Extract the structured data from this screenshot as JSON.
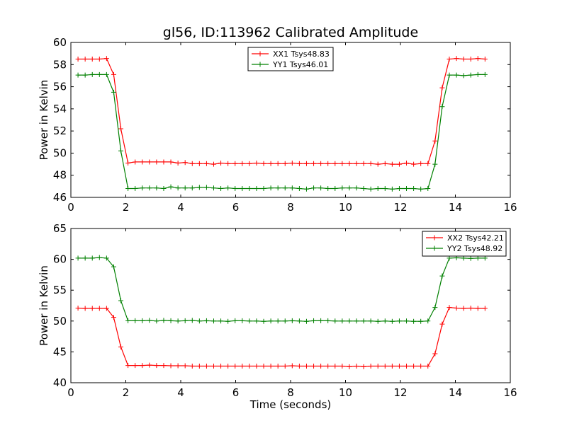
{
  "chart_data": [
    {
      "type": "line",
      "title": "gl56, ID:113962 Calibrated Amplitude",
      "xlabel": "",
      "ylabel": "Power in Kelvin",
      "xlim": [
        0,
        16
      ],
      "ylim": [
        46,
        60
      ],
      "xticks": [
        0,
        2,
        4,
        6,
        8,
        10,
        12,
        14,
        16
      ],
      "yticks": [
        46,
        48,
        50,
        52,
        54,
        56,
        58,
        60
      ],
      "legend": "top-center",
      "x": [
        0.26,
        0.52,
        0.78,
        1.04,
        1.3,
        1.56,
        1.82,
        2.08,
        2.34,
        2.6,
        2.86,
        3.12,
        3.38,
        3.64,
        3.9,
        4.16,
        4.42,
        4.68,
        4.94,
        5.2,
        5.46,
        5.72,
        5.98,
        6.24,
        6.5,
        6.76,
        7.02,
        7.28,
        7.54,
        7.8,
        8.06,
        8.32,
        8.58,
        8.84,
        9.1,
        9.36,
        9.62,
        9.88,
        10.14,
        10.4,
        10.66,
        10.92,
        11.18,
        11.44,
        11.7,
        11.96,
        12.22,
        12.48,
        12.74,
        13.0,
        13.26,
        13.52,
        13.78,
        14.04,
        14.3,
        14.56,
        14.82,
        15.08
      ],
      "series": [
        {
          "name": "XX1 Tsys48.83",
          "color": "#ff0000",
          "values": [
            58.5,
            58.5,
            58.5,
            58.5,
            58.55,
            57.1,
            52.2,
            49.1,
            49.2,
            49.2,
            49.2,
            49.2,
            49.2,
            49.2,
            49.1,
            49.15,
            49.05,
            49.05,
            49.05,
            49.0,
            49.1,
            49.05,
            49.05,
            49.05,
            49.05,
            49.1,
            49.05,
            49.05,
            49.05,
            49.05,
            49.1,
            49.05,
            49.05,
            49.05,
            49.05,
            49.05,
            49.05,
            49.05,
            49.05,
            49.05,
            49.05,
            49.05,
            49.0,
            49.05,
            49.0,
            49.0,
            49.1,
            49.0,
            49.05,
            49.05,
            51.1,
            55.9,
            58.5,
            58.55,
            58.5,
            58.5,
            58.55,
            58.5
          ]
        },
        {
          "name": "YY1 Tsys46.01",
          "color": "#008000",
          "values": [
            57.05,
            57.05,
            57.1,
            57.1,
            57.1,
            55.5,
            50.2,
            46.8,
            46.8,
            46.85,
            46.85,
            46.85,
            46.8,
            46.95,
            46.85,
            46.85,
            46.85,
            46.9,
            46.9,
            46.85,
            46.8,
            46.85,
            46.8,
            46.8,
            46.8,
            46.8,
            46.8,
            46.85,
            46.85,
            46.85,
            46.85,
            46.8,
            46.75,
            46.85,
            46.85,
            46.8,
            46.8,
            46.85,
            46.85,
            46.85,
            46.8,
            46.75,
            46.8,
            46.8,
            46.75,
            46.8,
            46.8,
            46.8,
            46.75,
            46.8,
            49.0,
            54.2,
            57.05,
            57.05,
            57.0,
            57.05,
            57.1,
            57.1
          ]
        }
      ]
    },
    {
      "type": "line",
      "title": "",
      "xlabel": "Time (seconds)",
      "ylabel": "Power in Kelvin",
      "xlim": [
        0,
        16
      ],
      "ylim": [
        40,
        65
      ],
      "xticks": [
        0,
        2,
        4,
        6,
        8,
        10,
        12,
        14,
        16
      ],
      "yticks": [
        40,
        45,
        50,
        55,
        60,
        65
      ],
      "legend": "top-right",
      "x": [
        0.26,
        0.52,
        0.78,
        1.04,
        1.3,
        1.56,
        1.82,
        2.08,
        2.34,
        2.6,
        2.86,
        3.12,
        3.38,
        3.64,
        3.9,
        4.16,
        4.42,
        4.68,
        4.94,
        5.2,
        5.46,
        5.72,
        5.98,
        6.24,
        6.5,
        6.76,
        7.02,
        7.28,
        7.54,
        7.8,
        8.06,
        8.32,
        8.58,
        8.84,
        9.1,
        9.36,
        9.62,
        9.88,
        10.14,
        10.4,
        10.66,
        10.92,
        11.18,
        11.44,
        11.7,
        11.96,
        12.22,
        12.48,
        12.74,
        13.0,
        13.26,
        13.52,
        13.78,
        14.04,
        14.3,
        14.56,
        14.82,
        15.08
      ],
      "series": [
        {
          "name": "XX2 Tsys42.21",
          "color": "#ff0000",
          "values": [
            52.1,
            52.05,
            52.05,
            52.05,
            52.05,
            50.6,
            45.8,
            42.8,
            42.8,
            42.8,
            42.85,
            42.8,
            42.8,
            42.75,
            42.75,
            42.75,
            42.7,
            42.7,
            42.7,
            42.7,
            42.7,
            42.7,
            42.7,
            42.7,
            42.7,
            42.7,
            42.7,
            42.7,
            42.7,
            42.7,
            42.75,
            42.7,
            42.7,
            42.7,
            42.7,
            42.7,
            42.7,
            42.7,
            42.6,
            42.7,
            42.6,
            42.7,
            42.7,
            42.7,
            42.7,
            42.7,
            42.7,
            42.7,
            42.7,
            42.7,
            44.7,
            49.5,
            52.2,
            52.1,
            52.05,
            52.1,
            52.05,
            52.05
          ]
        },
        {
          "name": "YY2 Tsys48.92",
          "color": "#008000",
          "values": [
            60.2,
            60.2,
            60.2,
            60.3,
            60.2,
            58.8,
            53.3,
            50.05,
            50.05,
            50.05,
            50.1,
            50.0,
            50.1,
            50.05,
            50.0,
            50.05,
            50.1,
            50.0,
            50.05,
            50.0,
            50.0,
            49.95,
            50.05,
            50.05,
            50.0,
            50.0,
            49.95,
            50.0,
            50.0,
            50.0,
            50.05,
            50.0,
            49.95,
            50.05,
            50.05,
            50.05,
            50.0,
            50.0,
            50.0,
            50.0,
            50.0,
            50.0,
            49.95,
            50.0,
            49.95,
            50.0,
            50.0,
            49.95,
            49.95,
            50.0,
            52.2,
            57.3,
            60.2,
            60.25,
            60.2,
            60.15,
            60.2,
            60.2
          ]
        }
      ]
    }
  ]
}
